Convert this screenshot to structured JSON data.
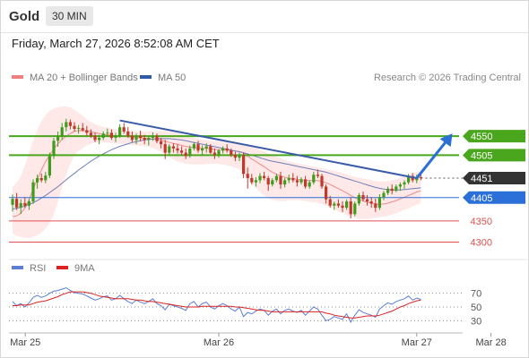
{
  "header": {
    "title": "Gold",
    "timeframe": "30 MIN"
  },
  "datetime": "Friday, March 27, 2026 8:52:08 AM CET",
  "legend": [
    {
      "label": "MA 20 + Bollinger Bands",
      "color": "#f08080"
    },
    {
      "label": "MA 50",
      "color": "#2e5aa8"
    }
  ],
  "credit": "Research © 2026 Trading Central",
  "price_levels": [
    {
      "value": 4550,
      "label": "4550",
      "kind": "resistance",
      "color": "#4aa61c"
    },
    {
      "value": 4505,
      "label": "4505",
      "kind": "resistance",
      "color": "#4aa61c"
    },
    {
      "value": 4451,
      "label": "4451",
      "kind": "last",
      "color": "#333333"
    },
    {
      "value": 4405,
      "label": "4405",
      "kind": "pivot",
      "color": "#2b6fd8"
    },
    {
      "value": 4350,
      "label": "4350",
      "kind": "support",
      "color": "#e05050"
    },
    {
      "value": 4300,
      "label": "4300",
      "kind": "support",
      "color": "#e05050"
    }
  ],
  "rsi_legend": [
    {
      "label": "RSI",
      "color": "#5b7fd6"
    },
    {
      "label": "9MA",
      "color": "#dd2222"
    }
  ],
  "rsi_levels": [
    "70",
    "50",
    "30"
  ],
  "x_labels": [
    {
      "label": "Mar 25",
      "t": 2
    },
    {
      "label": "Mar 26",
      "t": 50
    },
    {
      "label": "Mar 27",
      "t": 98
    },
    {
      "label": "Mar 28",
      "t": 116
    }
  ],
  "chart_data": {
    "type": "candlestick",
    "symbol": "Gold",
    "interval": "30 MIN",
    "price_range": [
      4280,
      4660
    ],
    "rsi_range": [
      20,
      80
    ],
    "ohlc": [
      [
        4388,
        4412,
        4372,
        4402
      ],
      [
        4402,
        4416,
        4376,
        4382
      ],
      [
        4382,
        4401,
        4366,
        4392
      ],
      [
        4392,
        4406,
        4381,
        4386
      ],
      [
        4386,
        4402,
        4376,
        4396
      ],
      [
        4396,
        4448,
        4390,
        4441
      ],
      [
        4441,
        4459,
        4426,
        4451
      ],
      [
        4451,
        4462,
        4441,
        4446
      ],
      [
        4446,
        4466,
        4439,
        4457
      ],
      [
        4457,
        4511,
        4451,
        4503
      ],
      [
        4503,
        4546,
        4496,
        4539
      ],
      [
        4539,
        4561,
        4525,
        4551
      ],
      [
        4551,
        4581,
        4541,
        4571
      ],
      [
        4571,
        4591,
        4561,
        4583
      ],
      [
        4583,
        4589,
        4566,
        4574
      ],
      [
        4574,
        4583,
        4561,
        4567
      ],
      [
        4567,
        4576,
        4556,
        4569
      ],
      [
        4569,
        4581,
        4561,
        4564
      ],
      [
        4564,
        4574,
        4551,
        4558
      ],
      [
        4558,
        4566,
        4546,
        4551
      ],
      [
        4551,
        4559,
        4536,
        4541
      ],
      [
        4541,
        4553,
        4531,
        4546
      ],
      [
        4546,
        4561,
        4541,
        4556
      ],
      [
        4556,
        4568,
        4548,
        4558
      ],
      [
        4558,
        4566,
        4541,
        4546
      ],
      [
        4546,
        4558,
        4536,
        4551
      ],
      [
        4551,
        4578,
        4546,
        4571
      ],
      [
        4571,
        4581,
        4556,
        4561
      ],
      [
        4561,
        4571,
        4546,
        4551
      ],
      [
        4551,
        4561,
        4536,
        4541
      ],
      [
        4541,
        4556,
        4531,
        4551
      ],
      [
        4551,
        4563,
        4538,
        4546
      ],
      [
        4546,
        4553,
        4531,
        4541
      ],
      [
        4541,
        4551,
        4528,
        4546
      ],
      [
        4546,
        4559,
        4539,
        4551
      ],
      [
        4551,
        4556,
        4533,
        4538
      ],
      [
        4538,
        4546,
        4521,
        4531
      ],
      [
        4531,
        4541,
        4496,
        4511
      ],
      [
        4511,
        4531,
        4506,
        4526
      ],
      [
        4526,
        4533,
        4511,
        4521
      ],
      [
        4521,
        4531,
        4509,
        4516
      ],
      [
        4516,
        4526,
        4506,
        4511
      ],
      [
        4511,
        4521,
        4496,
        4503
      ],
      [
        4503,
        4528,
        4499,
        4521
      ],
      [
        4521,
        4536,
        4516,
        4531
      ],
      [
        4531,
        4539,
        4511,
        4516
      ],
      [
        4516,
        4528,
        4506,
        4521
      ],
      [
        4521,
        4533,
        4511,
        4526
      ],
      [
        4526,
        4531,
        4508,
        4511
      ],
      [
        4511,
        4521,
        4496,
        4506
      ],
      [
        4506,
        4519,
        4499,
        4516
      ],
      [
        4516,
        4526,
        4509,
        4521
      ],
      [
        4521,
        4531,
        4511,
        4516
      ],
      [
        4516,
        4521,
        4501,
        4506
      ],
      [
        4506,
        4513,
        4491,
        4499
      ],
      [
        4499,
        4511,
        4491,
        4505
      ],
      [
        4505,
        4511,
        4451,
        4461
      ],
      [
        4461,
        4476,
        4426,
        4451
      ],
      [
        4451,
        4461,
        4436,
        4441
      ],
      [
        4441,
        4453,
        4431,
        4446
      ],
      [
        4446,
        4463,
        4439,
        4456
      ],
      [
        4456,
        4466,
        4446,
        4451
      ],
      [
        4451,
        4456,
        4421,
        4436
      ],
      [
        4436,
        4451,
        4431,
        4446
      ],
      [
        4446,
        4461,
        4441,
        4456
      ],
      [
        4456,
        4466,
        4426,
        4436
      ],
      [
        4436,
        4451,
        4429,
        4446
      ],
      [
        4446,
        4459,
        4439,
        4451
      ],
      [
        4451,
        4463,
        4441,
        4446
      ],
      [
        4446,
        4456,
        4431,
        4441
      ],
      [
        4441,
        4453,
        4436,
        4448
      ],
      [
        4448,
        4456,
        4426,
        4431
      ],
      [
        4431,
        4446,
        4426,
        4441
      ],
      [
        4441,
        4466,
        4436,
        4459
      ],
      [
        4459,
        4471,
        4451,
        4456
      ],
      [
        4456,
        4461,
        4426,
        4431
      ],
      [
        4431,
        4436,
        4391,
        4401
      ],
      [
        4401,
        4409,
        4381,
        4386
      ],
      [
        4386,
        4396,
        4376,
        4391
      ],
      [
        4391,
        4401,
        4381,
        4386
      ],
      [
        4386,
        4396,
        4371,
        4381
      ],
      [
        4381,
        4401,
        4376,
        4396
      ],
      [
        4396,
        4406,
        4356,
        4366
      ],
      [
        4366,
        4396,
        4361,
        4391
      ],
      [
        4391,
        4416,
        4386,
        4411
      ],
      [
        4411,
        4419,
        4396,
        4401
      ],
      [
        4401,
        4411,
        4386,
        4396
      ],
      [
        4396,
        4406,
        4381,
        4391
      ],
      [
        4391,
        4403,
        4371,
        4381
      ],
      [
        4381,
        4413,
        4376,
        4406
      ],
      [
        4406,
        4421,
        4399,
        4416
      ],
      [
        4416,
        4431,
        4411,
        4426
      ],
      [
        4426,
        4436,
        4413,
        4421
      ],
      [
        4421,
        4436,
        4418,
        4431
      ],
      [
        4431,
        4441,
        4421,
        4436
      ],
      [
        4436,
        4446,
        4426,
        4441
      ],
      [
        4441,
        4461,
        4436,
        4456
      ],
      [
        4456,
        4463,
        4441,
        4446
      ],
      [
        4446,
        4459,
        4439,
        4453
      ],
      [
        4453,
        4461,
        4446,
        4451
      ]
    ],
    "ma20": [
      4360,
      4362,
      4368,
      4380,
      4400,
      4425,
      4448,
      4470,
      4490,
      4505,
      4520,
      4532,
      4542,
      4550,
      4556,
      4561,
      4563,
      4563,
      4562,
      4561,
      4558,
      4556,
      4554,
      4553,
      4552,
      4551,
      4551,
      4550,
      4549,
      4548,
      4547,
      4546,
      4545,
      4544,
      4543,
      4542,
      4541,
      4538,
      4535,
      4533,
      4531,
      4528,
      4526,
      4524,
      4523,
      4522,
      4521,
      4521,
      4520,
      4519,
      4518,
      4517,
      4517,
      4516,
      4515,
      4514,
      4510,
      4503,
      4496,
      4490,
      4484,
      4478,
      4471,
      4465,
      4460,
      4456,
      4453,
      4451,
      4450,
      4448,
      4447,
      4446,
      4445,
      4445,
      4445,
      4443,
      4440,
      4436,
      4431,
      4426,
      4421,
      4416,
      4410,
      4405,
      4400,
      4397,
      4394,
      4392,
      4390,
      4389,
      4390,
      4392,
      4395,
      4398,
      4402,
      4406,
      4410,
      4414,
      4418,
      4421
    ],
    "bb_upper": [
      4430,
      4440,
      4455,
      4480,
      4510,
      4540,
      4565,
      4585,
      4600,
      4610,
      4615,
      4618,
      4620,
      4620,
      4618,
      4612,
      4605,
      4598,
      4590,
      4583,
      4578,
      4575,
      4572,
      4570,
      4568,
      4566,
      4564,
      4563,
      4562,
      4561,
      4560,
      4560,
      4560,
      4561,
      4562,
      4562,
      4562,
      4562,
      4561,
      4560,
      4558,
      4555,
      4552,
      4549,
      4546,
      4544,
      4542,
      4540,
      4539,
      4538,
      4537,
      4536,
      4535,
      4534,
      4533,
      4532,
      4530,
      4528,
      4525,
      4522,
      4518,
      4514,
      4510,
      4506,
      4502,
      4498,
      4494,
      4490,
      4488,
      4486,
      4484,
      4482,
      4480,
      4478,
      4476,
      4474,
      4472,
      4470,
      4468,
      4466,
      4463,
      4460,
      4457,
      4454,
      4452,
      4450,
      4448,
      4446,
      4444,
      4443,
      4443,
      4444,
      4446,
      4448,
      4452,
      4456,
      4460,
      4463,
      4465,
      4466
    ],
    "bb_lower": [
      4320,
      4315,
      4312,
      4310,
      4310,
      4312,
      4316,
      4322,
      4332,
      4345,
      4365,
      4395,
      4430,
      4460,
      4485,
      4505,
      4515,
      4522,
      4528,
      4532,
      4535,
      4536,
      4536,
      4535,
      4534,
      4533,
      4532,
      4531,
      4530,
      4529,
      4528,
      4527,
      4526,
      4525,
      4522,
      4518,
      4514,
      4508,
      4500,
      4494,
      4490,
      4487,
      4485,
      4484,
      4483,
      4483,
      4483,
      4484,
      4485,
      4485,
      4484,
      4483,
      4481,
      4479,
      4476,
      4472,
      4464,
      4452,
      4440,
      4428,
      4418,
      4410,
      4404,
      4400,
      4398,
      4397,
      4397,
      4398,
      4399,
      4399,
      4398,
      4397,
      4395,
      4394,
      4392,
      4390,
      4386,
      4382,
      4377,
      4372,
      4368,
      4364,
      4360,
      4357,
      4355,
      4354,
      4354,
      4355,
      4357,
      4359,
      4360,
      4362,
      4365,
      4368,
      4372,
      4376,
      4380,
      4384,
      4388,
      4392
    ],
    "ma50": [
      4378,
      4380,
      4382,
      4385,
      4389,
      4393,
      4398,
      4404,
      4410,
      4417,
      4424,
      4431,
      4439,
      4447,
      4455,
      4462,
      4470,
      4477,
      4484,
      4491,
      4497,
      4503,
      4508,
      4513,
      4518,
      4522,
      4526,
      4529,
      4532,
      4535,
      4537,
      4539,
      4541,
      4542,
      4543,
      4544,
      4544,
      4544,
      4544,
      4543,
      4542,
      4541,
      4539,
      4537,
      4535,
      4533,
      4531,
      4529,
      4527,
      4525,
      4523,
      4521,
      4519,
      4517,
      4515,
      4513,
      4511,
      4508,
      4505,
      4502,
      4499,
      4496,
      4493,
      4491,
      4489,
      4487,
      4485,
      4483,
      4481,
      4479,
      4477,
      4475,
      4473,
      4471,
      4469,
      4467,
      4465,
      4462,
      4459,
      4456,
      4453,
      4450,
      4447,
      4444,
      4441,
      4438,
      4435,
      4432,
      4429,
      4427,
      4425,
      4424,
      4423,
      4423,
      4423,
      4424,
      4425,
      4426,
      4427,
      4428
    ],
    "rsi": [
      58,
      52,
      55,
      50,
      56,
      64,
      67,
      64,
      66,
      70,
      73,
      74,
      76,
      78,
      74,
      71,
      70,
      69,
      66,
      63,
      60,
      62,
      65,
      66,
      60,
      62,
      67,
      62,
      58,
      55,
      60,
      57,
      55,
      58,
      62,
      55,
      52,
      46,
      54,
      52,
      50,
      48,
      45,
      55,
      58,
      50,
      55,
      57,
      50,
      47,
      52,
      55,
      52,
      47,
      44,
      50,
      36,
      42,
      40,
      44,
      47,
      45,
      38,
      44,
      47,
      40,
      45,
      47,
      44,
      42,
      45,
      38,
      44,
      50,
      47,
      38,
      30,
      32,
      36,
      34,
      32,
      40,
      28,
      38,
      46,
      42,
      40,
      38,
      35,
      47,
      52,
      56,
      54,
      58,
      60,
      62,
      66,
      60,
      63,
      61
    ],
    "rsi_ma": [
      52,
      52,
      53,
      53,
      53,
      55,
      57,
      58,
      59,
      61,
      63,
      65,
      68,
      70,
      72,
      72,
      72,
      72,
      71,
      70,
      68,
      66,
      65,
      64,
      63,
      62,
      62,
      62,
      62,
      61,
      60,
      60,
      59,
      58,
      58,
      57,
      56,
      55,
      54,
      53,
      52,
      51,
      50,
      50,
      50,
      50,
      51,
      51,
      51,
      51,
      51,
      51,
      51,
      51,
      50,
      50,
      49,
      48,
      47,
      46,
      45,
      45,
      44,
      43,
      43,
      43,
      43,
      43,
      43,
      43,
      43,
      43,
      43,
      43,
      43,
      43,
      41,
      40,
      38,
      37,
      36,
      35,
      34,
      34,
      35,
      36,
      37,
      37,
      37,
      38,
      40,
      42,
      44,
      47,
      50,
      52,
      55,
      57,
      59,
      60
    ],
    "trendlines": [
      {
        "from": [
          26,
          4587
        ],
        "to": [
          98,
          4451
        ],
        "color": "#3a5ca8"
      }
    ],
    "forecast_arrow": {
      "from": [
        98,
        4451
      ],
      "to": [
        106,
        4550
      ],
      "color": "#2b6fd8"
    }
  }
}
